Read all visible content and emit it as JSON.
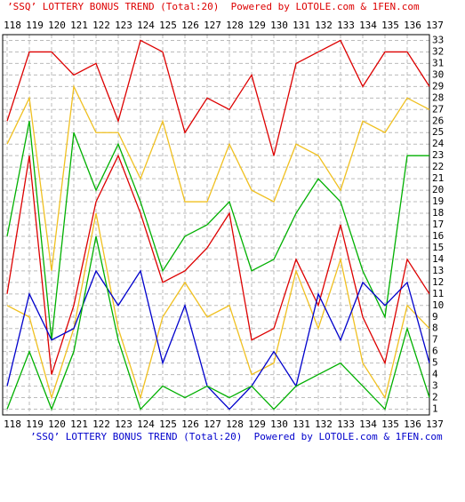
{
  "chart_data": {
    "type": "line",
    "title": "’SSQ’ LOTTERY BONUS TREND (Total:20)  Powered by LOTOLE.com & 1FEN.com",
    "categories": [
      "118",
      "119",
      "120",
      "121",
      "122",
      "123",
      "124",
      "125",
      "126",
      "127",
      "128",
      "129",
      "130",
      "131",
      "132",
      "133",
      "134",
      "135",
      "136",
      "137"
    ],
    "series": [
      {
        "color": "#dd0000",
        "values": [
          26,
          32,
          32,
          30,
          31,
          26,
          33,
          32,
          25,
          28,
          27,
          30,
          23,
          31,
          32,
          33,
          29,
          32,
          32,
          29
        ]
      },
      {
        "color": "#f0c020",
        "values": [
          24,
          28,
          13,
          29,
          25,
          25,
          21,
          26,
          19,
          19,
          24,
          20,
          19,
          24,
          23,
          20,
          26,
          25,
          28,
          27
        ]
      },
      {
        "color": "#00b000",
        "values": [
          16,
          26,
          7,
          25,
          20,
          24,
          19,
          13,
          16,
          17,
          19,
          13,
          14,
          18,
          21,
          19,
          13,
          9,
          23,
          23
        ]
      },
      {
        "color": "#dd0000",
        "values": [
          11,
          23,
          4,
          10,
          19,
          23,
          18,
          12,
          13,
          15,
          18,
          7,
          8,
          14,
          10,
          17,
          9,
          5,
          14,
          11
        ]
      },
      {
        "color": "#f0c020",
        "values": [
          10,
          9,
          2,
          8,
          18,
          8,
          2,
          9,
          12,
          9,
          10,
          4,
          5,
          13,
          8,
          14,
          5,
          2,
          10,
          8
        ]
      },
      {
        "color": "#0000cc",
        "values": [
          3,
          11,
          7,
          8,
          13,
          10,
          13,
          5,
          10,
          3,
          1,
          3,
          6,
          3,
          11,
          7,
          12,
          10,
          12,
          5
        ]
      },
      {
        "color": "#00b000",
        "values": [
          1,
          6,
          1,
          6,
          16,
          7,
          1,
          3,
          2,
          3,
          2,
          3,
          1,
          3,
          4,
          5,
          3,
          1,
          8,
          2
        ]
      }
    ],
    "ylim": [
      0.5,
      33.5
    ],
    "yticks": [
      1,
      2,
      3,
      4,
      5,
      6,
      7,
      8,
      9,
      10,
      11,
      12,
      13,
      14,
      15,
      16,
      17,
      18,
      19,
      20,
      21,
      22,
      23,
      24,
      25,
      26,
      27,
      28,
      29,
      30,
      31,
      32,
      33
    ],
    "grid": true
  }
}
